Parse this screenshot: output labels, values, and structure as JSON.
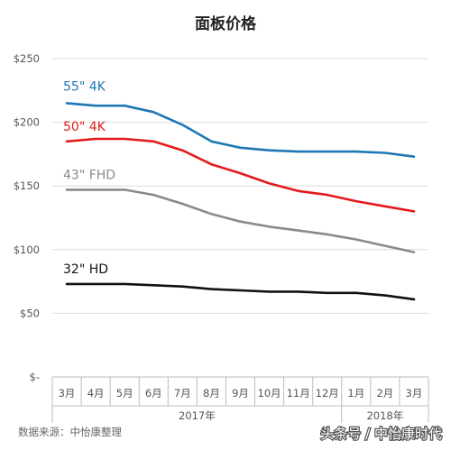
{
  "chart_data": {
    "type": "line",
    "title": "面板价格",
    "x": [
      "3月",
      "4月",
      "5月",
      "6月",
      "7月",
      "8月",
      "9月",
      "10月",
      "11月",
      "12月",
      "1月",
      "2月",
      "3月"
    ],
    "year_groups": [
      {
        "label": "2017年",
        "from": 0,
        "to": 9
      },
      {
        "label": "2018年",
        "from": 10,
        "to": 12
      }
    ],
    "y_ticks": [
      "$-",
      "$50",
      "$100",
      "$150",
      "$200",
      "$250"
    ],
    "ylim": [
      0,
      250
    ],
    "grid": true,
    "series": [
      {
        "name": "55\" 4K",
        "color": "#1f77b4",
        "values": [
          215,
          213,
          213,
          208,
          198,
          185,
          180,
          178,
          177,
          177,
          177,
          176,
          173
        ]
      },
      {
        "name": "50\" 4K",
        "color": "#e41a1c",
        "values": [
          185,
          187,
          187,
          185,
          178,
          167,
          160,
          152,
          146,
          143,
          138,
          134,
          130
        ]
      },
      {
        "name": "43\" FHD",
        "color": "#8a8a8a",
        "values": [
          147,
          147,
          147,
          143,
          136,
          128,
          122,
          118,
          115,
          112,
          108,
          103,
          98
        ]
      },
      {
        "name": "32\" HD",
        "color": "#111111",
        "values": [
          73,
          73,
          73,
          72,
          71,
          69,
          68,
          67,
          67,
          66,
          66,
          64,
          61
        ]
      }
    ]
  },
  "source_note": "数据来源：中怡康整理",
  "watermark": "头条号 / 中怡康时代"
}
